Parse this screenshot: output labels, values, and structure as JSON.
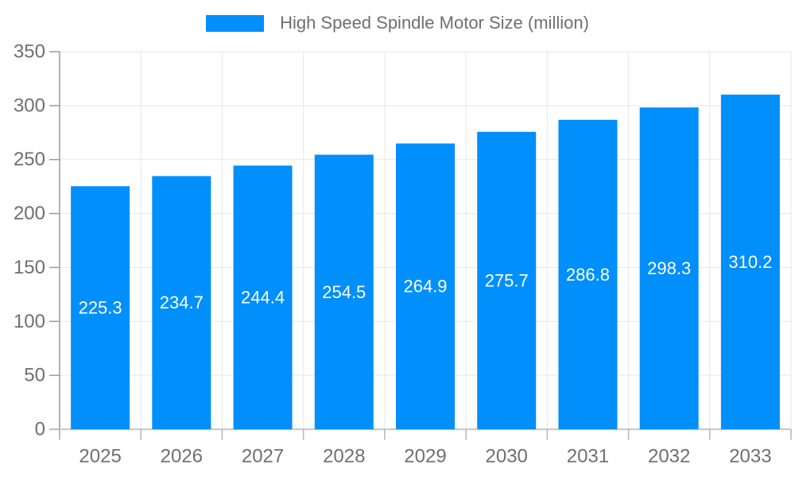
{
  "legend": {
    "label": "High Speed Spindle Motor Size (million)",
    "marker_color": "#008FFB"
  },
  "chart_data": {
    "type": "bar",
    "title": "High Speed Spindle Motor Size (million)",
    "categories": [
      "2025",
      "2026",
      "2027",
      "2028",
      "2029",
      "2030",
      "2031",
      "2032",
      "2033"
    ],
    "series": [
      {
        "name": "High Speed Spindle Motor Size (million)",
        "values": [
          225.3,
          234.7,
          244.4,
          254.5,
          264.9,
          275.7,
          286.8,
          298.3,
          310.2
        ]
      }
    ],
    "xlabel": "",
    "ylabel": "",
    "ylim": [
      0,
      350
    ],
    "y_ticks": [
      0,
      50,
      100,
      150,
      200,
      250,
      300,
      350
    ],
    "grid": true,
    "legend_position": "top",
    "colors": {
      "bar": "#008FFB",
      "data_label": "#ffffff",
      "axis_text": "#6f6f6f",
      "grid_line": "#e7e7e7",
      "axis_line": "#9a9a9a",
      "tick_line": "#b6b6b6"
    }
  }
}
